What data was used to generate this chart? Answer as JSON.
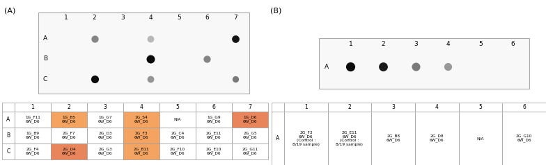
{
  "panel_A_label": "(A)",
  "panel_B_label": "(B)",
  "A_plate_cols": [
    "1",
    "2",
    "3",
    "4",
    "5",
    "6",
    "7"
  ],
  "A_plate_rows": [
    "A",
    "B",
    "C"
  ],
  "A_dots": [
    {
      "row": 0,
      "col": 1,
      "gray": 0.52,
      "size": 55
    },
    {
      "row": 0,
      "col": 3,
      "gray": 0.72,
      "size": 50
    },
    {
      "row": 0,
      "col": 6,
      "gray": 0.08,
      "size": 60
    },
    {
      "row": 1,
      "col": 3,
      "gray": 0.04,
      "size": 75
    },
    {
      "row": 1,
      "col": 5,
      "gray": 0.52,
      "size": 55
    },
    {
      "row": 2,
      "col": 1,
      "gray": 0.05,
      "size": 65
    },
    {
      "row": 2,
      "col": 3,
      "gray": 0.58,
      "size": 50
    },
    {
      "row": 2,
      "col": 6,
      "gray": 0.48,
      "size": 45
    }
  ],
  "A_table_header": [
    "",
    "1",
    "2",
    "3",
    "4",
    "5",
    "6",
    "7"
  ],
  "A_table_data": [
    [
      "1G_F11\n6W_D6",
      "1G_B5\n6W_D6",
      "1G_G7\n6W_D6",
      "1G_S4\n6W_D6",
      "N/A",
      "1G_G9\n6W_D6",
      "1G_D6\n6W_D6"
    ],
    [
      "1G_B9\n6W_D6",
      "2G_F7\n6W_D6",
      "2G_D3\n6W_D6",
      "2G_F3\n6W_D6",
      "2G_C4\n6W_D6",
      "2G_E11\n6W_D6",
      "2G_G5\n6W_D6"
    ],
    [
      "2G_F4\n6W_D6",
      "2G_D4\n6W_D6",
      "2G_G3\n6W_D6",
      "2G_B11\n6W_D6",
      "2G_F10\n6W_D6",
      "2G_E10\n6W_D6",
      "2G_G11\n6W_D6"
    ]
  ],
  "A_table_highlight": [
    [
      0,
      1,
      "#f4a460"
    ],
    [
      0,
      3,
      "#f4a460"
    ],
    [
      0,
      6,
      "#e8855a"
    ],
    [
      1,
      3,
      "#f4a460"
    ],
    [
      2,
      1,
      "#e8855a"
    ],
    [
      2,
      3,
      "#f4a460"
    ]
  ],
  "B_plate_cols": [
    "1",
    "2",
    "3",
    "4",
    "5",
    "6"
  ],
  "B_plate_rows": [
    "A"
  ],
  "B_dots": [
    {
      "row": 0,
      "col": 0,
      "gray": 0.05,
      "size": 90
    },
    {
      "row": 0,
      "col": 1,
      "gray": 0.1,
      "size": 85
    },
    {
      "row": 0,
      "col": 2,
      "gray": 0.48,
      "size": 75
    },
    {
      "row": 0,
      "col": 3,
      "gray": 0.6,
      "size": 65
    }
  ],
  "B_table_header": [
    "",
    "1",
    "2",
    "3",
    "4",
    "5",
    "6"
  ],
  "B_table_data": [
    [
      "2G_F3\n6W_D6\n(Control :\n8/19 sample)",
      "2G_E11\n6W_D6\n(Control :\n8/19 sample)",
      "2G_B8\n6W_D6",
      "2G_D8\n6W_D6",
      "N/A",
      "2G_G10\n6W_D6"
    ]
  ],
  "bg_color": "#ffffff",
  "plate_border": "#aaaaaa",
  "table_border": "#999999"
}
